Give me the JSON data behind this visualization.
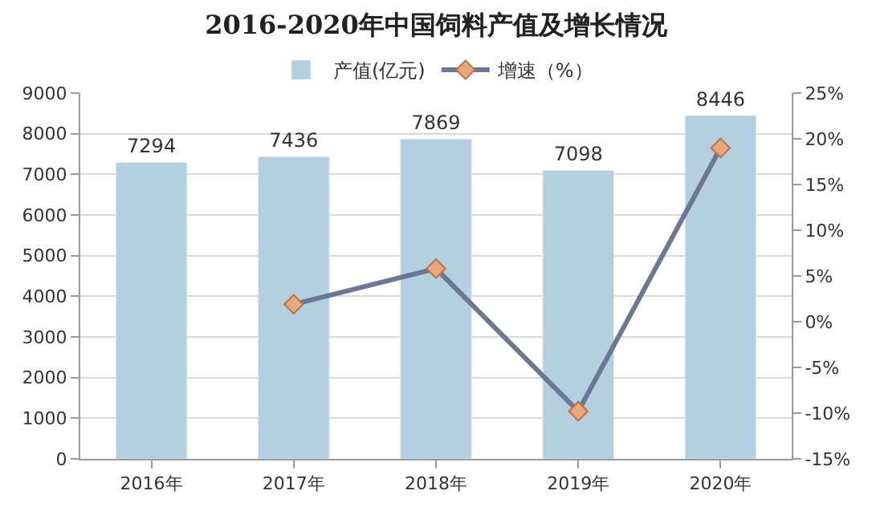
{
  "chart_data": {
    "type": "bar",
    "title": "2016-2020年中国饲料产值及增长情况",
    "categories": [
      "2016年",
      "2017年",
      "2018年",
      "2019年",
      "2020年"
    ],
    "series": [
      {
        "name": "产值(亿元)",
        "color": "#b4cfe0",
        "values": [
          7294,
          7436,
          7869,
          7098,
          8446
        ],
        "value_labels": [
          "7294",
          "7436",
          "7869",
          "7098",
          "8446"
        ]
      },
      {
        "name": "增速（%）",
        "type": "line",
        "axis": "y2",
        "color": "#6b7795",
        "colors": [
          "#e8a87c",
          "#e8a87c",
          "#e8a87c",
          "#e8a87c",
          "#e8a87c"
        ],
        "values": [
          null,
          1.9,
          5.8,
          -9.8,
          19.0
        ]
      }
    ],
    "ylim": [
      0,
      9000
    ],
    "yticks": [
      0,
      1000,
      2000,
      3000,
      4000,
      5000,
      6000,
      7000,
      8000,
      9000
    ],
    "y2lim": [
      -15,
      25
    ],
    "y2ticks": [
      {
        "value": -15,
        "label": "-15%"
      },
      {
        "value": -10,
        "label": "-10%"
      },
      {
        "value": -5,
        "label": "-5%"
      },
      {
        "value": 0,
        "label": "0%"
      },
      {
        "value": 5,
        "label": "5%"
      },
      {
        "value": 10,
        "label": "10%"
      },
      {
        "value": 15,
        "label": "15%"
      },
      {
        "value": 20,
        "label": "20%"
      },
      {
        "value": 25,
        "label": "25%"
      }
    ],
    "grid": "y",
    "legend": "top",
    "marker": "diamond",
    "line_style": "solid"
  }
}
